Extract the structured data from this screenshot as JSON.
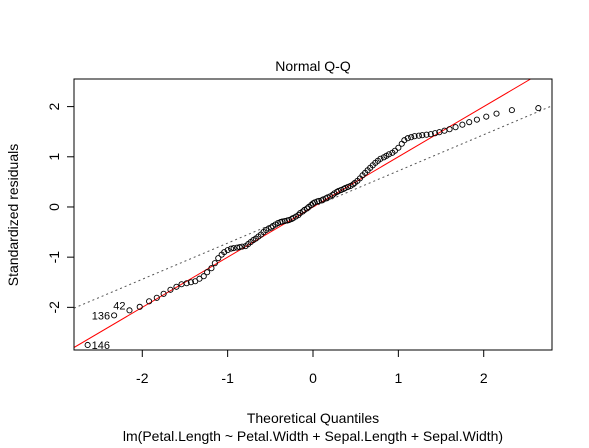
{
  "chart_data": {
    "type": "scatter",
    "title": "Normal Q-Q",
    "xlabel": "Theoretical Quantiles",
    "subtitle": "lm(Petal.Length ~ Petal.Width + Sepal.Length + Sepal.Width)",
    "ylabel": "Standardized residuals",
    "xlim": [
      -2.8,
      2.8
    ],
    "ylim": [
      -2.85,
      2.55
    ],
    "x_ticks": [
      -2,
      -1,
      0,
      1,
      2
    ],
    "y_ticks": [
      -2,
      -1,
      0,
      1,
      2
    ],
    "grid": false,
    "point_style": "open-circle",
    "reference_line": {
      "label": "y = x",
      "color": "#ff0000"
    },
    "qq_line": {
      "style": "dotted",
      "color": "#555555",
      "slope": 0.72,
      "intercept": 0.0
    },
    "annotations": [
      {
        "text": "146",
        "x": -2.64,
        "y": -2.75
      },
      {
        "text": "136",
        "x": -2.33,
        "y": -2.16
      },
      {
        "text": "42",
        "x": -2.15,
        "y": -2.06
      }
    ],
    "series": [
      {
        "points": [
          [
            -2.64,
            -2.75
          ],
          [
            -2.33,
            -2.16
          ],
          [
            -2.15,
            -2.06
          ],
          [
            -2.03,
            -1.99
          ],
          [
            -1.92,
            -1.88
          ],
          [
            -1.83,
            -1.81
          ],
          [
            -1.75,
            -1.73
          ],
          [
            -1.67,
            -1.65
          ],
          [
            -1.6,
            -1.59
          ],
          [
            -1.54,
            -1.54
          ],
          [
            -1.48,
            -1.52
          ],
          [
            -1.43,
            -1.5
          ],
          [
            -1.38,
            -1.48
          ],
          [
            -1.33,
            -1.43
          ],
          [
            -1.28,
            -1.38
          ],
          [
            -1.24,
            -1.3
          ],
          [
            -1.19,
            -1.22
          ],
          [
            -1.15,
            -1.12
          ],
          [
            -1.11,
            -1.02
          ],
          [
            -1.07,
            -0.95
          ],
          [
            -1.04,
            -0.9
          ],
          [
            -1.0,
            -0.86
          ],
          [
            -0.96,
            -0.83
          ],
          [
            -0.93,
            -0.82
          ],
          [
            -0.89,
            -0.81
          ],
          [
            -0.86,
            -0.8
          ],
          [
            -0.83,
            -0.79
          ],
          [
            -0.79,
            -0.78
          ],
          [
            -0.76,
            -0.74
          ],
          [
            -0.73,
            -0.7
          ],
          [
            -0.7,
            -0.66
          ],
          [
            -0.67,
            -0.63
          ],
          [
            -0.64,
            -0.59
          ],
          [
            -0.61,
            -0.55
          ],
          [
            -0.58,
            -0.5
          ],
          [
            -0.55,
            -0.46
          ],
          [
            -0.52,
            -0.43
          ],
          [
            -0.49,
            -0.41
          ],
          [
            -0.47,
            -0.38
          ],
          [
            -0.44,
            -0.35
          ],
          [
            -0.41,
            -0.32
          ],
          [
            -0.38,
            -0.3
          ],
          [
            -0.36,
            -0.29
          ],
          [
            -0.33,
            -0.28
          ],
          [
            -0.3,
            -0.27
          ],
          [
            -0.28,
            -0.26
          ],
          [
            -0.25,
            -0.24
          ],
          [
            -0.23,
            -0.22
          ],
          [
            -0.2,
            -0.19
          ],
          [
            -0.17,
            -0.16
          ],
          [
            -0.15,
            -0.12
          ],
          [
            -0.12,
            -0.09
          ],
          [
            -0.1,
            -0.06
          ],
          [
            -0.07,
            -0.03
          ],
          [
            -0.05,
            0.0
          ],
          [
            -0.02,
            0.04
          ],
          [
            0.0,
            0.07
          ],
          [
            0.02,
            0.09
          ],
          [
            0.05,
            0.11
          ],
          [
            0.07,
            0.12
          ],
          [
            0.1,
            0.13
          ],
          [
            0.12,
            0.15
          ],
          [
            0.15,
            0.17
          ],
          [
            0.17,
            0.19
          ],
          [
            0.2,
            0.21
          ],
          [
            0.23,
            0.24
          ],
          [
            0.25,
            0.27
          ],
          [
            0.28,
            0.3
          ],
          [
            0.3,
            0.32
          ],
          [
            0.33,
            0.34
          ],
          [
            0.36,
            0.36
          ],
          [
            0.38,
            0.38
          ],
          [
            0.41,
            0.4
          ],
          [
            0.44,
            0.42
          ],
          [
            0.47,
            0.45
          ],
          [
            0.49,
            0.48
          ],
          [
            0.52,
            0.52
          ],
          [
            0.55,
            0.57
          ],
          [
            0.58,
            0.63
          ],
          [
            0.61,
            0.68
          ],
          [
            0.64,
            0.73
          ],
          [
            0.67,
            0.78
          ],
          [
            0.7,
            0.83
          ],
          [
            0.73,
            0.88
          ],
          [
            0.76,
            0.92
          ],
          [
            0.79,
            0.96
          ],
          [
            0.83,
            0.99
          ],
          [
            0.86,
            1.02
          ],
          [
            0.89,
            1.05
          ],
          [
            0.93,
            1.08
          ],
          [
            0.96,
            1.12
          ],
          [
            1.0,
            1.18
          ],
          [
            1.04,
            1.26
          ],
          [
            1.07,
            1.33
          ],
          [
            1.11,
            1.37
          ],
          [
            1.15,
            1.39
          ],
          [
            1.19,
            1.41
          ],
          [
            1.24,
            1.42
          ],
          [
            1.28,
            1.43
          ],
          [
            1.33,
            1.44
          ],
          [
            1.38,
            1.45
          ],
          [
            1.43,
            1.47
          ],
          [
            1.48,
            1.49
          ],
          [
            1.54,
            1.52
          ],
          [
            1.6,
            1.55
          ],
          [
            1.67,
            1.59
          ],
          [
            1.75,
            1.64
          ],
          [
            1.83,
            1.69
          ],
          [
            1.92,
            1.74
          ],
          [
            2.03,
            1.8
          ],
          [
            2.15,
            1.86
          ],
          [
            2.33,
            1.93
          ],
          [
            2.64,
            1.97
          ]
        ]
      }
    ]
  }
}
